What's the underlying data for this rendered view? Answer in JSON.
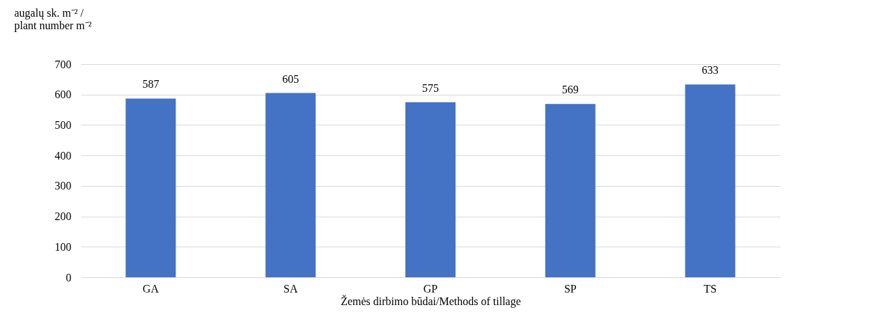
{
  "chart_data": {
    "type": "bar",
    "ylabel": "augalų sk. m⁻² /\nplant number  m⁻²",
    "xlabel": "Žemės dirbimo būdai/Methods of tillage",
    "categories": [
      "GA",
      "SA",
      "GP",
      "SP",
      "TS"
    ],
    "values": [
      587,
      605,
      575,
      569,
      633
    ],
    "color": "#4472c4",
    "ylim": [
      0,
      700
    ],
    "yticks": [
      0,
      100,
      200,
      300,
      400,
      500,
      600,
      700
    ],
    "grid": "y",
    "data_labels": true
  }
}
